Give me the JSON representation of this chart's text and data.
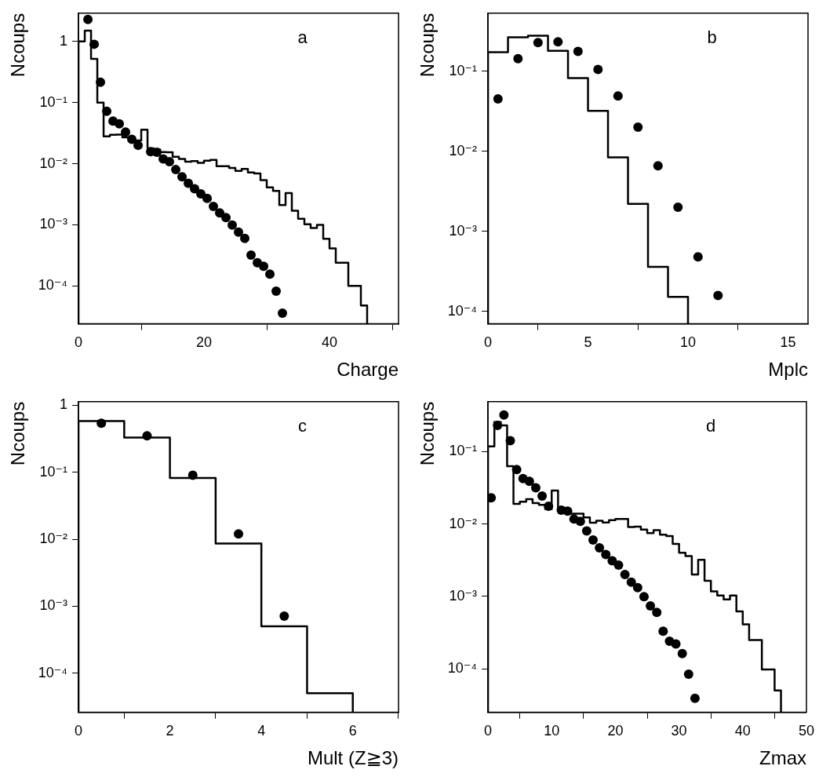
{
  "chart_data": [
    {
      "type": "histogram",
      "xlabel": "Charge",
      "ylabel": "Ncoups",
      "annotations": [
        "a"
      ],
      "log": "y",
      "grid": false,
      "legend": false,
      "marker": "circle",
      "xlim": [
        0,
        51
      ],
      "ylim": [
        2.4e-05,
        2.9
      ],
      "xticks": [
        0,
        20,
        40
      ],
      "yticks": [
        {
          "value": 0.0001,
          "label": "10⁻⁴"
        },
        {
          "value": 0.001,
          "label": "10⁻³"
        },
        {
          "value": 0.01,
          "label": "10⁻²"
        },
        {
          "value": 0.1,
          "label": "10⁻¹"
        },
        1
      ],
      "series": [
        {
          "type": "histogram",
          "color": "#000000",
          "bins": [
            0,
            1,
            2,
            3,
            4,
            5,
            6,
            7,
            8,
            9,
            10,
            11,
            12,
            13,
            14,
            15,
            16,
            17,
            18,
            19,
            20,
            21,
            22,
            23,
            24,
            25,
            26,
            27,
            28,
            29,
            30,
            31,
            32,
            33,
            34,
            35,
            36,
            37,
            38,
            39,
            40,
            41,
            42,
            43,
            44,
            45,
            46
          ],
          "values": [
            1.0,
            1.5,
            0.52,
            0.1,
            0.028,
            0.0296,
            0.03,
            0.027,
            0.025,
            0.024,
            0.036,
            0.0179,
            0.017,
            0.0155,
            0.0154,
            0.013,
            0.012,
            0.0108,
            0.011,
            0.0103,
            0.0112,
            0.0115,
            0.0091,
            0.0091,
            0.0085,
            0.0076,
            0.0082,
            0.0072,
            0.0069,
            0.0054,
            0.0041,
            0.0036,
            0.0021,
            0.0033,
            0.0017,
            0.00126,
            0.00102,
            0.00089,
            0.001,
            0.00059,
            0.00041,
            0.00024,
            0.00024,
            0.0001,
            0.0001,
            4.8e-05
          ]
        },
        {
          "type": "scatter",
          "color": "#000000",
          "x": [
            1.5,
            2.5,
            3.5,
            4.5,
            5.5,
            6.5,
            7.5,
            8.5,
            9.5,
            11.5,
            12.5,
            13.5,
            14.5,
            15.5,
            16.5,
            17.5,
            18.5,
            19.5,
            20.5,
            21.5,
            22.5,
            23.5,
            24.5,
            25.5,
            26.5,
            27.5,
            28.5,
            29.5,
            30.5,
            31.5,
            32.5
          ],
          "values": [
            2.3,
            0.9,
            0.215,
            0.072,
            0.05,
            0.045,
            0.033,
            0.025,
            0.02,
            0.0157,
            0.0154,
            0.012,
            0.0108,
            0.008,
            0.0061,
            0.0048,
            0.0039,
            0.0032,
            0.0027,
            0.002,
            0.00157,
            0.00131,
            0.00099,
            0.00076,
            0.0006,
            0.00032,
            0.00024,
            0.00021,
            0.000156,
            8.2e-05,
            3.6e-05
          ]
        }
      ]
    },
    {
      "type": "histogram",
      "xlabel": "Mplc",
      "ylabel": "Ncoups",
      "annotations": [
        "b"
      ],
      "log": "y",
      "grid": false,
      "legend": false,
      "marker": "circle",
      "xlim": [
        0,
        16
      ],
      "ylim": [
        7.4e-05,
        0.53
      ],
      "xticks": [
        0,
        5,
        10,
        15
      ],
      "yticks": [
        {
          "value": 0.0001,
          "label": "10⁻⁴"
        },
        {
          "value": 0.001,
          "label": "10⁻³"
        },
        {
          "value": 0.01,
          "label": "10⁻²"
        },
        {
          "value": 0.1,
          "label": "10⁻¹"
        }
      ],
      "series": [
        {
          "type": "histogram",
          "color": "#000000",
          "bins": [
            0,
            1,
            2,
            3,
            4,
            5,
            6,
            7,
            8,
            9,
            10
          ],
          "values": [
            0.173,
            0.265,
            0.277,
            0.18,
            0.082,
            0.032,
            0.0084,
            0.0022,
            0.00036,
            0.000152
          ]
        },
        {
          "type": "scatter",
          "color": "#000000",
          "x": [
            0.5,
            1.5,
            2.5,
            3.5,
            4.5,
            5.5,
            6.5,
            7.5,
            8.5,
            9.5,
            10.5,
            11.5
          ],
          "values": [
            0.045,
            0.143,
            0.228,
            0.233,
            0.177,
            0.105,
            0.049,
            0.02,
            0.0066,
            0.002,
            0.00048,
            0.000158
          ]
        }
      ]
    },
    {
      "type": "histogram",
      "xlabel": "Mult (Z≧3)",
      "ylabel": "Ncoups",
      "annotations": [
        "c"
      ],
      "log": "y",
      "grid": false,
      "legend": false,
      "marker": "circle",
      "xlim": [
        0,
        7
      ],
      "ylim": [
        2.6e-05,
        1.13
      ],
      "xticks": [
        0,
        2,
        4,
        6
      ],
      "yticks": [
        {
          "value": 0.0001,
          "label": "10⁻⁴"
        },
        {
          "value": 0.001,
          "label": "10⁻³"
        },
        {
          "value": 0.01,
          "label": "10⁻²"
        },
        {
          "value": 0.1,
          "label": "10⁻¹"
        },
        1
      ],
      "series": [
        {
          "type": "histogram",
          "color": "#000000",
          "bins": [
            0,
            1,
            2,
            3,
            4,
            5,
            6
          ],
          "values": [
            0.58,
            0.33,
            0.082,
            0.0086,
            0.0005,
            5e-05
          ]
        },
        {
          "type": "scatter",
          "color": "#000000",
          "x": [
            0.5,
            1.5,
            2.5,
            3.5,
            4.5
          ],
          "values": [
            0.54,
            0.35,
            0.09,
            0.012,
            0.00071
          ]
        }
      ]
    },
    {
      "type": "histogram",
      "xlabel": "Zmax",
      "ylabel": "Ncoups",
      "annotations": [
        "d"
      ],
      "log": "y",
      "grid": false,
      "legend": false,
      "marker": "circle",
      "xlim": [
        0,
        50
      ],
      "ylim": [
        2.5e-05,
        0.49
      ],
      "xticks": [
        0,
        10,
        20,
        30,
        40,
        50
      ],
      "yticks": [
        {
          "value": 0.0001,
          "label": "10⁻⁴"
        },
        {
          "value": 0.001,
          "label": "10⁻³"
        },
        {
          "value": 0.01,
          "label": "10⁻²"
        },
        {
          "value": 0.1,
          "label": "10⁻¹"
        }
      ],
      "series": [
        {
          "type": "histogram",
          "color": "#000000",
          "bins": [
            0,
            1,
            2,
            3,
            4,
            5,
            6,
            7,
            8,
            9,
            10,
            11,
            12,
            13,
            14,
            15,
            16,
            17,
            18,
            19,
            20,
            21,
            22,
            23,
            24,
            25,
            26,
            27,
            28,
            29,
            30,
            31,
            32,
            33,
            34,
            35,
            36,
            37,
            38,
            39,
            40,
            41,
            42,
            43,
            44,
            45,
            46
          ],
          "values": [
            0.118,
            0.256,
            0.23,
            0.063,
            0.019,
            0.0203,
            0.022,
            0.0195,
            0.0184,
            0.016,
            0.029,
            0.0169,
            0.0158,
            0.0139,
            0.0139,
            0.0123,
            0.0104,
            0.0111,
            0.0105,
            0.0113,
            0.0117,
            0.0117,
            0.0091,
            0.0092,
            0.0084,
            0.0075,
            0.0082,
            0.0071,
            0.0068,
            0.0053,
            0.004,
            0.0036,
            0.002,
            0.0032,
            0.00164,
            0.00117,
            0.00103,
            0.00091,
            0.00103,
            0.00062,
            0.00041,
            0.00025,
            0.00025,
            9.8e-05,
            9.8e-05,
            5e-05
          ]
        },
        {
          "type": "scatter",
          "color": "#000000",
          "x": [
            0.5,
            1.5,
            2.5,
            3.5,
            4.5,
            5.5,
            6.5,
            7.5,
            8.5,
            9.5,
            11.5,
            12.5,
            13.5,
            14.5,
            15.5,
            16.5,
            17.5,
            18.5,
            19.5,
            20.5,
            21.5,
            22.5,
            23.5,
            24.5,
            25.5,
            26.5,
            27.5,
            28.5,
            29.5,
            30.5,
            31.5,
            32.5
          ],
          "values": [
            0.023,
            0.23,
            0.32,
            0.142,
            0.0565,
            0.0425,
            0.039,
            0.0317,
            0.0244,
            0.0176,
            0.0155,
            0.0151,
            0.0117,
            0.0109,
            0.008,
            0.006,
            0.0047,
            0.0038,
            0.0031,
            0.0027,
            0.002,
            0.00157,
            0.00132,
            0.00099,
            0.00074,
            0.0006,
            0.00033,
            0.00024,
            0.00022,
            0.000162,
            8.4e-05,
            3.9e-05
          ]
        }
      ]
    }
  ]
}
